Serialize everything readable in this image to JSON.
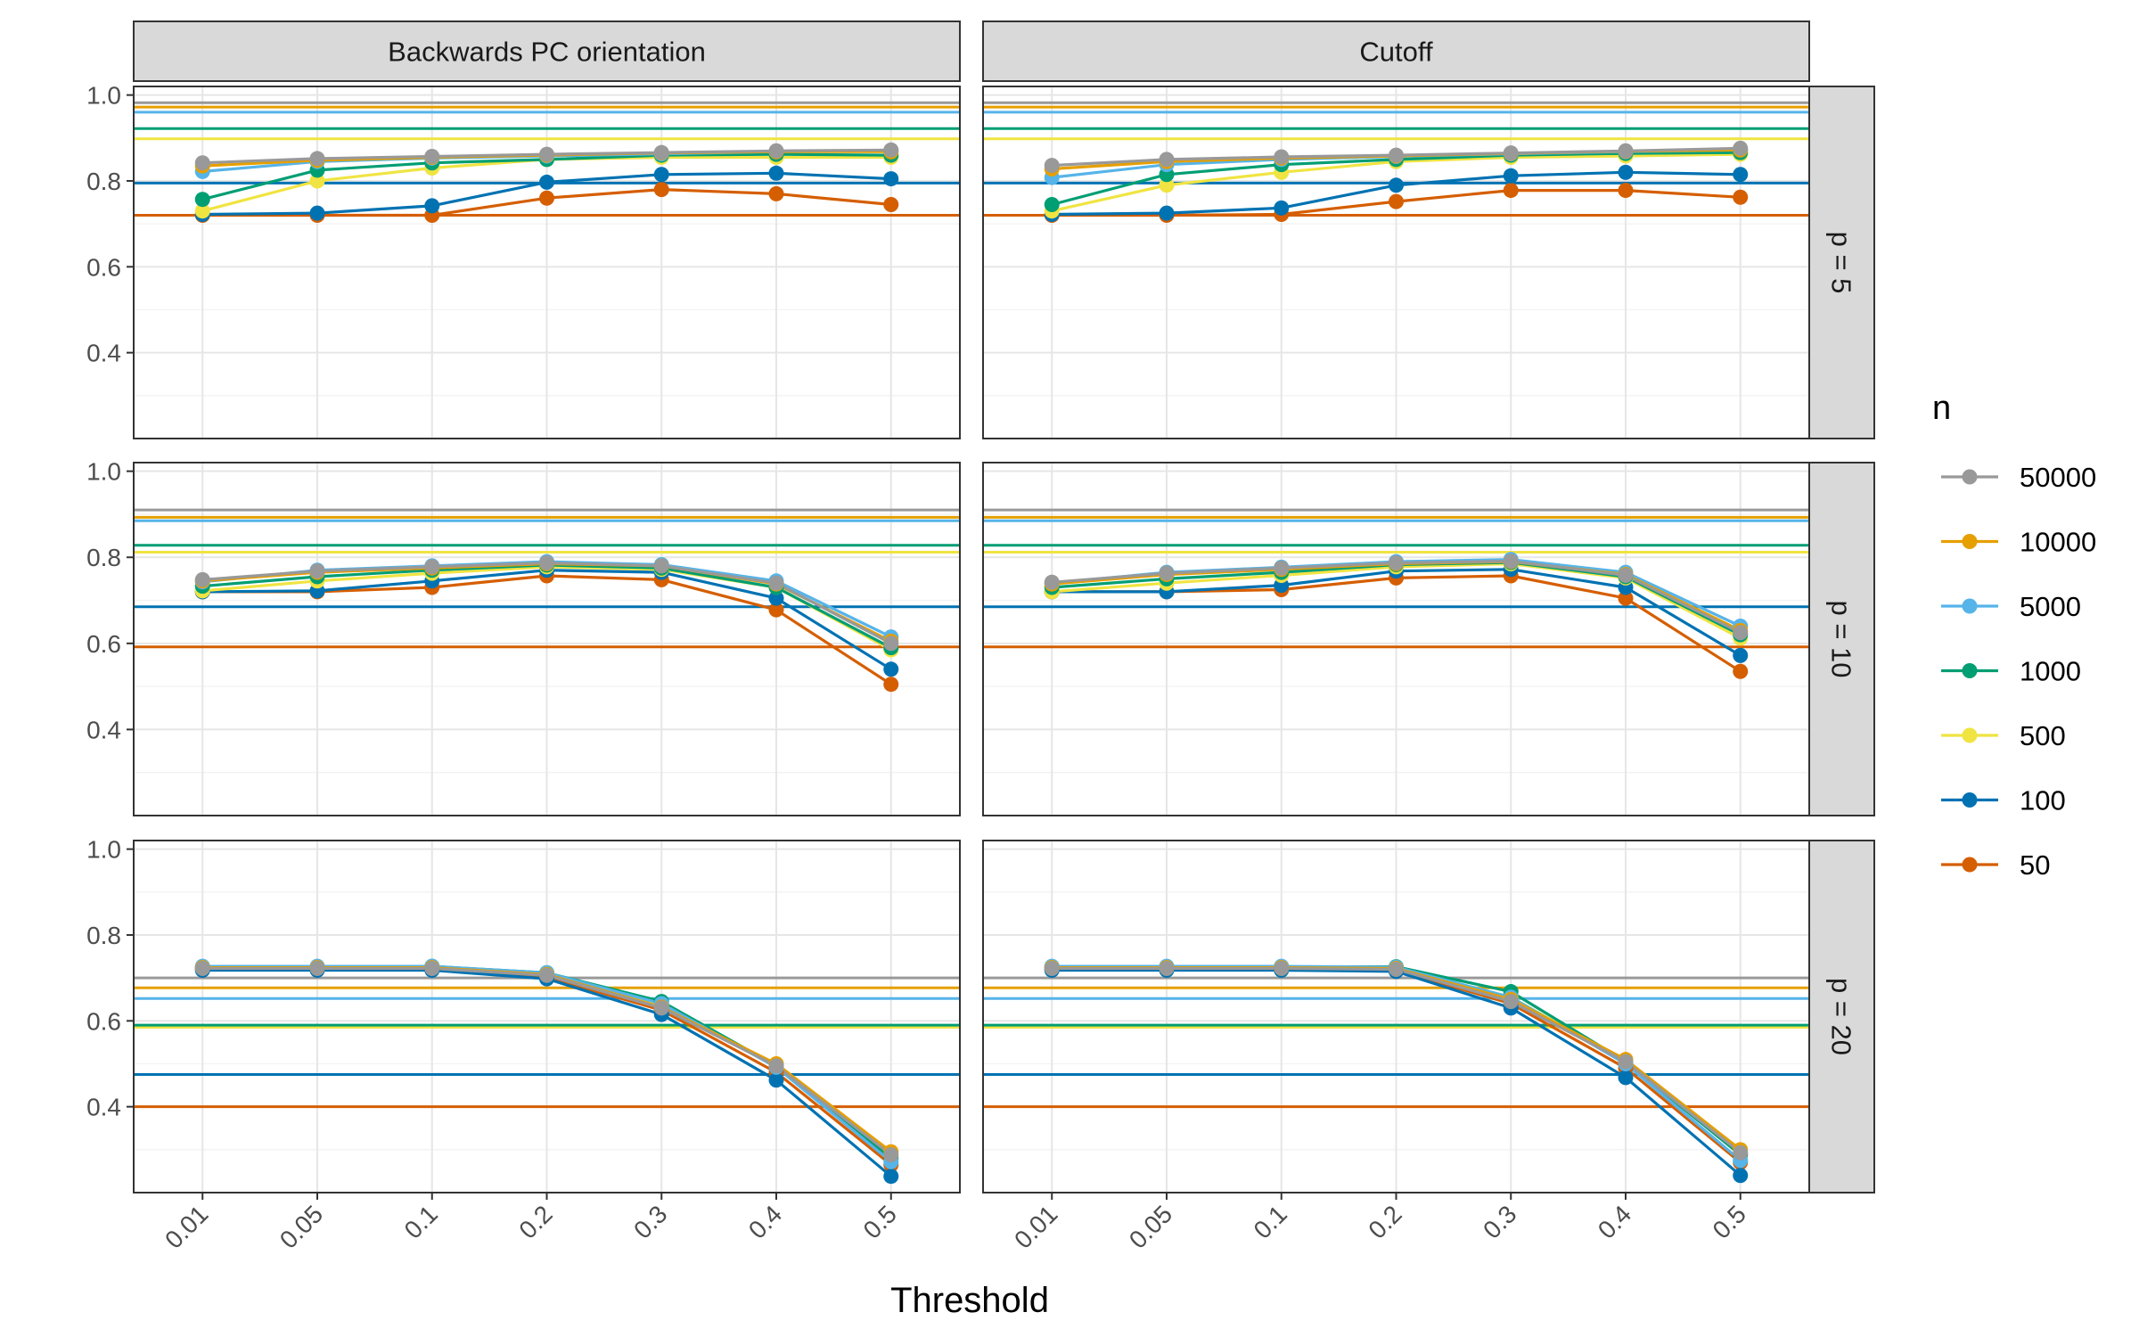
{
  "chart_data": {
    "type": "line",
    "x_title": "Threshold",
    "x_categories": [
      "0.01",
      "0.05",
      "0.1",
      "0.2",
      "0.3",
      "0.4",
      "0.5"
    ],
    "y_ticks": [
      "0.4",
      "0.6",
      "0.8",
      "1.0"
    ],
    "ylim": [
      0.2,
      1.02
    ],
    "facet_columns": [
      "Backwards PC orientation",
      "Cutoff"
    ],
    "facet_rows": [
      "p = 5",
      "p = 10",
      "p = 20"
    ],
    "legend": {
      "title": "n",
      "entries": [
        {
          "label": "50000",
          "color": "#999999"
        },
        {
          "label": "10000",
          "color": "#E69F00"
        },
        {
          "label": "5000",
          "color": "#56B4E9"
        },
        {
          "label": "1000",
          "color": "#009E73"
        },
        {
          "label": "500",
          "color": "#F0E442"
        },
        {
          "label": "100",
          "color": "#0072B2"
        },
        {
          "label": "50",
          "color": "#D55E00"
        }
      ]
    },
    "panels": [
      {
        "row": "p = 5",
        "col": "Backwards PC orientation",
        "series": [
          {
            "name": "50",
            "values": [
              0.72,
              0.72,
              0.72,
              0.76,
              0.78,
              0.77,
              0.745
            ],
            "hline": 0.72
          },
          {
            "name": "100",
            "values": [
              0.722,
              0.725,
              0.742,
              0.797,
              0.815,
              0.818,
              0.805
            ],
            "hline": 0.795
          },
          {
            "name": "500",
            "values": [
              0.73,
              0.8,
              0.83,
              0.85,
              0.855,
              0.855,
              0.855
            ],
            "hline": 0.898
          },
          {
            "name": "1000",
            "values": [
              0.757,
              0.825,
              0.842,
              0.85,
              0.86,
              0.862,
              0.86
            ],
            "hline": 0.922
          },
          {
            "name": "5000",
            "values": [
              0.822,
              0.845,
              0.853,
              0.858,
              0.863,
              0.868,
              0.87
            ],
            "hline": 0.96
          },
          {
            "name": "10000",
            "values": [
              0.835,
              0.848,
              0.855,
              0.86,
              0.865,
              0.868,
              0.868
            ],
            "hline": 0.972
          },
          {
            "name": "50000",
            "values": [
              0.842,
              0.852,
              0.857,
              0.862,
              0.866,
              0.87,
              0.872
            ],
            "hline": 0.982
          }
        ]
      },
      {
        "row": "p = 5",
        "col": "Cutoff",
        "series": [
          {
            "name": "50",
            "values": [
              0.72,
              0.72,
              0.722,
              0.752,
              0.778,
              0.778,
              0.762
            ],
            "hline": 0.72
          },
          {
            "name": "100",
            "values": [
              0.722,
              0.725,
              0.737,
              0.79,
              0.812,
              0.82,
              0.815
            ],
            "hline": 0.795
          },
          {
            "name": "500",
            "values": [
              0.73,
              0.79,
              0.82,
              0.845,
              0.855,
              0.858,
              0.862
            ],
            "hline": 0.898
          },
          {
            "name": "1000",
            "values": [
              0.745,
              0.815,
              0.838,
              0.85,
              0.86,
              0.864,
              0.866
            ],
            "hline": 0.922
          },
          {
            "name": "5000",
            "values": [
              0.808,
              0.838,
              0.85,
              0.857,
              0.863,
              0.868,
              0.872
            ],
            "hline": 0.96
          },
          {
            "name": "10000",
            "values": [
              0.828,
              0.845,
              0.853,
              0.858,
              0.864,
              0.869,
              0.872
            ],
            "hline": 0.972
          },
          {
            "name": "50000",
            "values": [
              0.836,
              0.85,
              0.856,
              0.86,
              0.865,
              0.87,
              0.876
            ],
            "hline": 0.982
          }
        ]
      },
      {
        "row": "p = 10",
        "col": "Backwards PC orientation",
        "series": [
          {
            "name": "50",
            "values": [
              0.72,
              0.72,
              0.73,
              0.757,
              0.748,
              0.678,
              0.505
            ],
            "hline": 0.592
          },
          {
            "name": "100",
            "values": [
              0.72,
              0.722,
              0.745,
              0.77,
              0.765,
              0.705,
              0.54
            ],
            "hline": 0.685
          },
          {
            "name": "500",
            "values": [
              0.722,
              0.745,
              0.763,
              0.778,
              0.772,
              0.73,
              0.585
            ],
            "hline": 0.812
          },
          {
            "name": "1000",
            "values": [
              0.733,
              0.755,
              0.77,
              0.782,
              0.775,
              0.73,
              0.59
            ],
            "hline": 0.828
          },
          {
            "name": "5000",
            "values": [
              0.743,
              0.77,
              0.78,
              0.79,
              0.783,
              0.745,
              0.615
            ],
            "hline": 0.885
          },
          {
            "name": "10000",
            "values": [
              0.745,
              0.765,
              0.775,
              0.785,
              0.78,
              0.738,
              0.605
            ],
            "hline": 0.893
          },
          {
            "name": "50000",
            "values": [
              0.748,
              0.768,
              0.778,
              0.787,
              0.78,
              0.74,
              0.6
            ],
            "hline": 0.91
          }
        ]
      },
      {
        "row": "p = 10",
        "col": "Cutoff",
        "series": [
          {
            "name": "50",
            "values": [
              0.72,
              0.72,
              0.725,
              0.752,
              0.757,
              0.705,
              0.535
            ],
            "hline": 0.592
          },
          {
            "name": "100",
            "values": [
              0.72,
              0.72,
              0.735,
              0.768,
              0.772,
              0.73,
              0.572
            ],
            "hline": 0.685
          },
          {
            "name": "500",
            "values": [
              0.72,
              0.74,
              0.758,
              0.778,
              0.785,
              0.752,
              0.612
            ],
            "hline": 0.812
          },
          {
            "name": "1000",
            "values": [
              0.73,
              0.75,
              0.765,
              0.783,
              0.788,
              0.755,
              0.62
            ],
            "hline": 0.828
          },
          {
            "name": "5000",
            "values": [
              0.74,
              0.765,
              0.777,
              0.79,
              0.795,
              0.765,
              0.64
            ],
            "hline": 0.885
          },
          {
            "name": "10000",
            "values": [
              0.738,
              0.76,
              0.772,
              0.785,
              0.79,
              0.76,
              0.63
            ],
            "hline": 0.893
          },
          {
            "name": "50000",
            "values": [
              0.742,
              0.763,
              0.775,
              0.787,
              0.791,
              0.758,
              0.625
            ],
            "hline": 0.91
          }
        ]
      },
      {
        "row": "p = 20",
        "col": "Backwards PC orientation",
        "series": [
          {
            "name": "50",
            "values": [
              0.72,
              0.72,
              0.72,
              0.702,
              0.625,
              0.48,
              0.265
            ],
            "hline": 0.4
          },
          {
            "name": "100",
            "values": [
              0.718,
              0.718,
              0.718,
              0.698,
              0.615,
              0.462,
              0.238
            ],
            "hline": 0.475
          },
          {
            "name": "500",
            "values": [
              0.725,
              0.725,
              0.725,
              0.712,
              0.638,
              0.495,
              0.285
            ],
            "hline": 0.585
          },
          {
            "name": "1000",
            "values": [
              0.725,
              0.725,
              0.727,
              0.712,
              0.645,
              0.495,
              0.28
            ],
            "hline": 0.59
          },
          {
            "name": "5000",
            "values": [
              0.727,
              0.727,
              0.727,
              0.712,
              0.64,
              0.492,
              0.272
            ],
            "hline": 0.652
          },
          {
            "name": "10000",
            "values": [
              0.724,
              0.724,
              0.724,
              0.708,
              0.632,
              0.5,
              0.295
            ],
            "hline": 0.677
          },
          {
            "name": "50000",
            "values": [
              0.722,
              0.722,
              0.722,
              0.706,
              0.63,
              0.495,
              0.288
            ],
            "hline": 0.7
          }
        ]
      },
      {
        "row": "p = 20",
        "col": "Cutoff",
        "series": [
          {
            "name": "50",
            "values": [
              0.72,
              0.72,
              0.72,
              0.718,
              0.64,
              0.49,
              0.27
            ],
            "hline": 0.4
          },
          {
            "name": "100",
            "values": [
              0.718,
              0.718,
              0.718,
              0.715,
              0.63,
              0.468,
              0.24
            ],
            "hline": 0.475
          },
          {
            "name": "500",
            "values": [
              0.725,
              0.725,
              0.725,
              0.722,
              0.655,
              0.505,
              0.29
            ],
            "hline": 0.585
          },
          {
            "name": "1000",
            "values": [
              0.726,
              0.726,
              0.726,
              0.726,
              0.668,
              0.505,
              0.288
            ],
            "hline": 0.59
          },
          {
            "name": "5000",
            "values": [
              0.727,
              0.727,
              0.727,
              0.725,
              0.655,
              0.5,
              0.275
            ],
            "hline": 0.652
          },
          {
            "name": "10000",
            "values": [
              0.724,
              0.724,
              0.724,
              0.722,
              0.65,
              0.51,
              0.3
            ],
            "hline": 0.677
          },
          {
            "name": "50000",
            "values": [
              0.722,
              0.722,
              0.722,
              0.72,
              0.645,
              0.505,
              0.293
            ],
            "hline": 0.7
          }
        ]
      }
    ]
  }
}
